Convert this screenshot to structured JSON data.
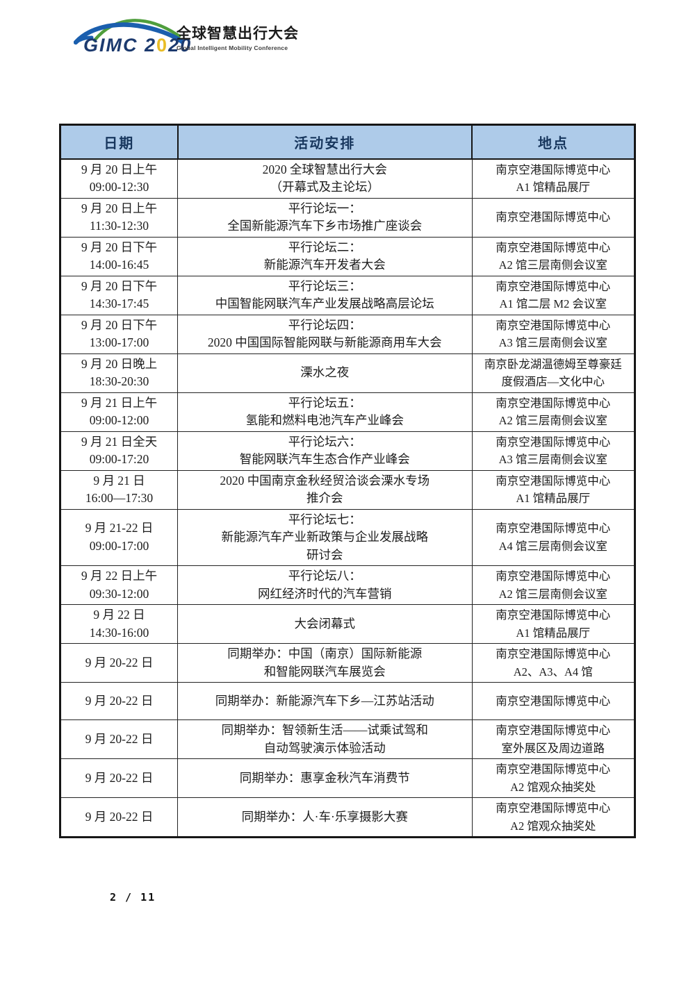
{
  "logo": {
    "brand": "GIMC",
    "year_part1": "2",
    "year_zero": "0",
    "year_part2": "20",
    "title_cn": "全球智慧出行大会",
    "title_en": "Global Intelligent Mobility Conference",
    "colors": {
      "navy": "#1c3a6e",
      "green": "#4f9e3d",
      "blue": "#1b5fae",
      "yellow": "#e9bd27"
    }
  },
  "table": {
    "headers": [
      "日期",
      "活动安排",
      "地点"
    ],
    "header_bg": "#aecbe9",
    "header_text_color": "#17365d",
    "rows": [
      {
        "date": [
          "9 月 20 日上午",
          "09:00-12:30"
        ],
        "activity": [
          "2020 全球智慧出行大会",
          "（开幕式及主论坛）"
        ],
        "location": [
          "南京空港国际博览中心",
          "A1 馆精品展厅"
        ]
      },
      {
        "date": [
          "9 月 20 日上午",
          "11:30-12:30"
        ],
        "activity": [
          "平行论坛一：",
          "全国新能源汽车下乡市场推广座谈会"
        ],
        "location": [
          "南京空港国际博览中心"
        ]
      },
      {
        "date": [
          "9 月 20 日下午",
          "14:00-16:45"
        ],
        "activity": [
          "平行论坛二：",
          "新能源汽车开发者大会"
        ],
        "location": [
          "南京空港国际博览中心",
          "A2 馆三层南侧会议室"
        ]
      },
      {
        "date": [
          "9 月 20 日下午",
          "14:30-17:45"
        ],
        "activity": [
          "平行论坛三：",
          "中国智能网联汽车产业发展战略高层论坛"
        ],
        "location": [
          "南京空港国际博览中心",
          "A1 馆二层 M2 会议室"
        ]
      },
      {
        "date": [
          "9 月 20 日下午",
          "13:00-17:00"
        ],
        "activity": [
          "平行论坛四：",
          "2020 中国国际智能网联与新能源商用车大会"
        ],
        "location": [
          "南京空港国际博览中心",
          "A3 馆三层南侧会议室"
        ]
      },
      {
        "date": [
          "9 月 20 日晚上",
          "18:30-20:30"
        ],
        "activity": [
          "溧水之夜"
        ],
        "location": [
          "南京卧龙湖温德姆至尊豪廷",
          "度假酒店—文化中心"
        ]
      },
      {
        "date": [
          "9 月 21 日上午",
          "09:00-12:00"
        ],
        "activity": [
          "平行论坛五：",
          "氢能和燃料电池汽车产业峰会"
        ],
        "location": [
          "南京空港国际博览中心",
          "A2 馆三层南侧会议室"
        ]
      },
      {
        "date": [
          "9 月 21 日全天",
          "09:00-17:20"
        ],
        "activity": [
          "平行论坛六：",
          "智能网联汽车生态合作产业峰会"
        ],
        "location": [
          "南京空港国际博览中心",
          "A3 馆三层南侧会议室"
        ]
      },
      {
        "date": [
          "9 月 21 日",
          "16:00—17:30"
        ],
        "activity": [
          "2020 中国南京金秋经贸洽谈会溧水专场",
          "推介会"
        ],
        "location": [
          "南京空港国际博览中心",
          "A1 馆精品展厅"
        ]
      },
      {
        "date": [
          "9 月 21-22 日",
          "09:00-17:00"
        ],
        "activity": [
          "平行论坛七：",
          "新能源汽车产业新政策与企业发展战略",
          "研讨会"
        ],
        "location": [
          "南京空港国际博览中心",
          "A4 馆三层南侧会议室"
        ]
      },
      {
        "date": [
          "9 月 22 日上午",
          "09:30-12:00"
        ],
        "activity": [
          "平行论坛八：",
          "网红经济时代的汽车营销"
        ],
        "location": [
          "南京空港国际博览中心",
          "A2 馆三层南侧会议室"
        ]
      },
      {
        "date": [
          "9 月 22 日",
          "14:30-16:00"
        ],
        "activity": [
          "大会闭幕式"
        ],
        "location": [
          "南京空港国际博览中心",
          "A1 馆精品展厅"
        ]
      },
      {
        "date": [
          "9 月 20-22 日"
        ],
        "activity": [
          "同期举办：中国（南京）国际新能源",
          "和智能网联汽车展览会"
        ],
        "location": [
          "南京空港国际博览中心",
          "A2、A3、A4 馆"
        ]
      },
      {
        "date": [
          "9 月 20-22 日"
        ],
        "activity": [
          "同期举办：新能源汽车下乡—江苏站活动"
        ],
        "location": [
          "南京空港国际博览中心"
        ]
      },
      {
        "date": [
          "9 月 20-22 日"
        ],
        "activity": [
          "同期举办：智领新生活——试乘试驾和",
          "自动驾驶演示体验活动"
        ],
        "location": [
          "南京空港国际博览中心",
          "室外展区及周边道路"
        ]
      },
      {
        "date": [
          "9 月 20-22 日"
        ],
        "activity": [
          "同期举办：惠享金秋汽车消费节"
        ],
        "location": [
          "南京空港国际博览中心",
          "A2 馆观众抽奖处"
        ]
      },
      {
        "date": [
          "9 月 20-22 日"
        ],
        "activity": [
          "同期举办：人·车·乐享摄影大赛"
        ],
        "location": [
          "南京空港国际博览中心",
          "A2 馆观众抽奖处"
        ]
      }
    ]
  },
  "footer": {
    "page_indicator": "2 / 11"
  }
}
